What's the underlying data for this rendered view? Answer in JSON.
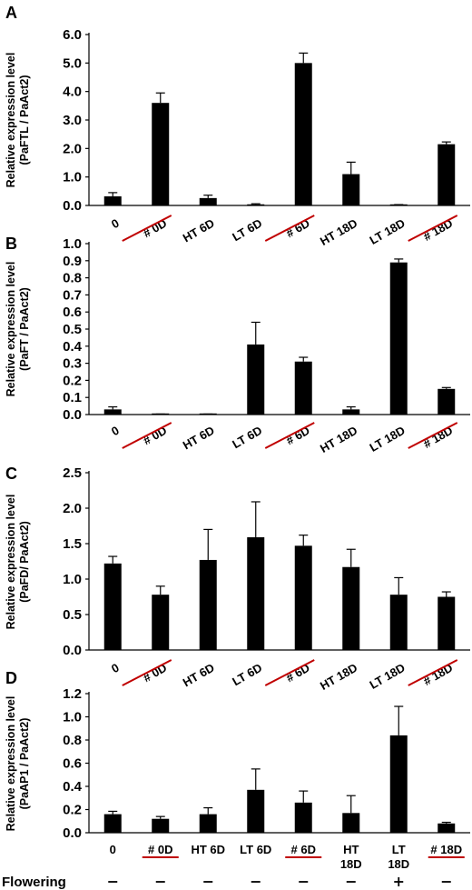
{
  "colors": {
    "bar": "#000000",
    "underline": "#c00000",
    "axis": "#000000"
  },
  "chart_data": [
    {
      "panel": "A",
      "type": "bar",
      "categories": [
        "0",
        "# 0D",
        "HT 6D",
        "LT 6D",
        "# 6D",
        "HT 18D",
        "LT 18D",
        "# 18D"
      ],
      "values": [
        0.32,
        3.6,
        0.26,
        0.04,
        5.0,
        1.1,
        0.02,
        2.15
      ],
      "errors": [
        0.13,
        0.35,
        0.1,
        0.02,
        0.35,
        0.42,
        0.01,
        0.08
      ],
      "ylabel_lines": [
        "Relative expression level",
        "(PaFTL / PaAct2)"
      ],
      "ylim": [
        0,
        6
      ],
      "yticks": [
        "0.0",
        "1.0",
        "2.0",
        "3.0",
        "4.0",
        "5.0",
        "6.0"
      ],
      "ytick_values": [
        0,
        1,
        2,
        3,
        4,
        5,
        6
      ],
      "underlined": [
        "# 0D",
        "# 6D",
        "# 18D"
      ]
    },
    {
      "panel": "B",
      "type": "bar",
      "categories": [
        "0",
        "# 0D",
        "HT 6D",
        "LT 6D",
        "# 6D",
        "HT 18D",
        "LT 18D",
        "# 18D"
      ],
      "values": [
        0.03,
        0.0,
        0.0,
        0.41,
        0.31,
        0.03,
        0.89,
        0.15
      ],
      "errors": [
        0.015,
        0.003,
        0.003,
        0.13,
        0.025,
        0.015,
        0.02,
        0.008
      ],
      "ylabel_lines": [
        "Relative expression level",
        "(PaFT / PaAct2)"
      ],
      "ylim": [
        0,
        1
      ],
      "yticks": [
        "0.0",
        "0.1",
        "0.2",
        "0.3",
        "0.4",
        "0.5",
        "0.6",
        "0.7",
        "0.8",
        "0.9",
        "1.0"
      ],
      "ytick_values": [
        0,
        0.1,
        0.2,
        0.3,
        0.4,
        0.5,
        0.6,
        0.7,
        0.8,
        0.9,
        1.0
      ],
      "underlined": [
        "# 0D",
        "# 6D",
        "# 18D"
      ]
    },
    {
      "panel": "C",
      "type": "bar",
      "categories": [
        "0",
        "# 0D",
        "HT 6D",
        "LT 6D",
        "# 6D",
        "HT 18D",
        "LT 18D",
        "# 18D"
      ],
      "values": [
        1.22,
        0.78,
        1.27,
        1.59,
        1.47,
        1.17,
        0.78,
        0.75
      ],
      "errors": [
        0.1,
        0.12,
        0.43,
        0.5,
        0.15,
        0.25,
        0.24,
        0.07
      ],
      "ylabel_lines": [
        "Relative expression level",
        "(PaFD/ PaAct2)"
      ],
      "ylim": [
        0,
        2.5
      ],
      "yticks": [
        "0.0",
        "0.5",
        "1.0",
        "1.5",
        "2.0",
        "2.5"
      ],
      "ytick_values": [
        0,
        0.5,
        1.0,
        1.5,
        2.0,
        2.5
      ],
      "underlined": [
        "# 0D",
        "# 6D",
        "# 18D"
      ]
    },
    {
      "panel": "D",
      "type": "bar",
      "categories": [
        "0",
        "# 0D",
        "HT 6D",
        "LT 6D",
        "# 6D",
        "HT 18D",
        "LT 18D",
        "# 18D"
      ],
      "values": [
        0.16,
        0.12,
        0.16,
        0.37,
        0.26,
        0.17,
        0.84,
        0.08
      ],
      "errors": [
        0.025,
        0.02,
        0.055,
        0.18,
        0.1,
        0.15,
        0.25,
        0.01
      ],
      "ylabel_lines": [
        "Relative expression level",
        "(PaAP1 / PaAct2)"
      ],
      "ylim": [
        0,
        1.2
      ],
      "yticks": [
        "0.0",
        "0.2",
        "0.4",
        "0.6",
        "0.8",
        "1.0",
        "1.2"
      ],
      "ytick_values": [
        0,
        0.2,
        0.4,
        0.6,
        0.8,
        1.0,
        1.2
      ],
      "underlined": [
        "# 0D",
        "# 6D",
        "# 18D"
      ],
      "category_display": [
        [
          "0"
        ],
        [
          "# 0D"
        ],
        [
          "HT 6D"
        ],
        [
          "LT 6D"
        ],
        [
          "# 6D"
        ],
        [
          "HT",
          "18D"
        ],
        [
          "LT",
          "18D"
        ],
        [
          "# 18D"
        ]
      ],
      "flowering_label": "Flowering",
      "flowering": [
        "–",
        "–",
        "–",
        "–",
        "–",
        "–",
        "+",
        "–"
      ]
    }
  ]
}
